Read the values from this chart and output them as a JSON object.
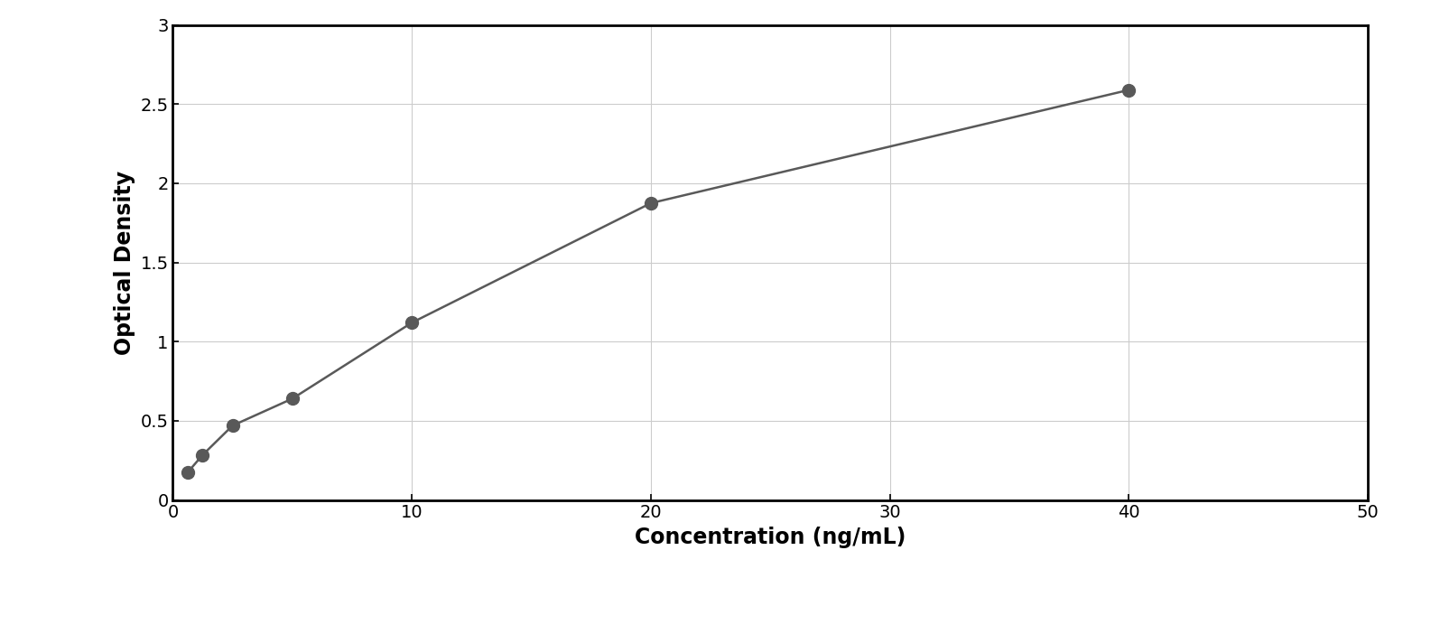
{
  "x_data": [
    0.625,
    1.25,
    2.5,
    5,
    10,
    20,
    40
  ],
  "y_data": [
    0.175,
    0.285,
    0.47,
    0.64,
    1.12,
    1.875,
    2.59
  ],
  "xlabel": "Concentration (ng/mL)",
  "ylabel": "Optical Density",
  "xlim": [
    0,
    50
  ],
  "ylim": [
    0,
    3
  ],
  "xticks": [
    0,
    10,
    20,
    30,
    40,
    50
  ],
  "yticks": [
    0,
    0.5,
    1.0,
    1.5,
    2.0,
    2.5,
    3.0
  ],
  "marker_color": "#595959",
  "line_color": "#595959",
  "background_color": "#ffffff",
  "grid_color": "#cccccc",
  "border_color": "#000000",
  "marker_size": 10,
  "line_width": 1.8,
  "xlabel_fontsize": 17,
  "ylabel_fontsize": 17,
  "tick_fontsize": 14,
  "xlabel_fontweight": "bold",
  "ylabel_fontweight": "bold",
  "curve_x_end": 43
}
